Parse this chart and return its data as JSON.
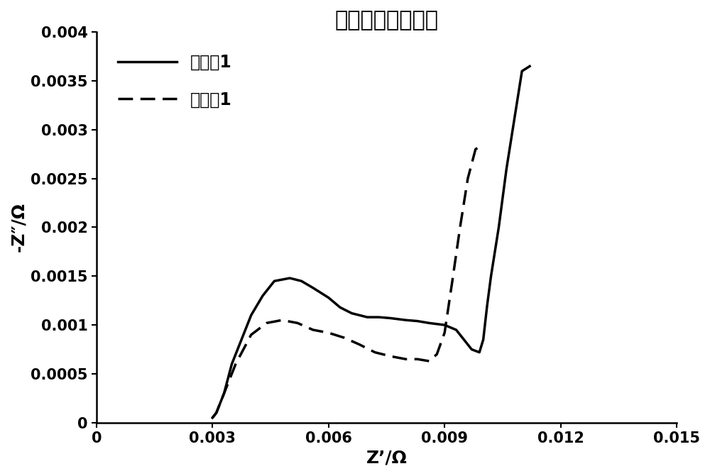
{
  "title": "负极电化学阻抗谱",
  "xlabel": "Z’/Ω",
  "ylabel": "-Z″/Ω",
  "xlim": [
    0,
    0.015
  ],
  "ylim": [
    0,
    0.004
  ],
  "xticks": [
    0,
    0.003,
    0.006,
    0.009,
    0.012,
    0.015
  ],
  "yticks": [
    0,
    0.0005,
    0.001,
    0.0015,
    0.002,
    0.0025,
    0.003,
    0.0035,
    0.004
  ],
  "legend1_label": "对比例1",
  "legend2_label": "实施例1",
  "solid_x": [
    0.003,
    0.0031,
    0.0033,
    0.0035,
    0.0038,
    0.004,
    0.0043,
    0.0046,
    0.005,
    0.0053,
    0.0056,
    0.006,
    0.0063,
    0.0066,
    0.007,
    0.0073,
    0.0076,
    0.008,
    0.0083,
    0.0086,
    0.009,
    0.0093,
    0.0095,
    0.0097,
    0.0099,
    0.01,
    0.0101,
    0.0102,
    0.0104,
    0.0106,
    0.0108,
    0.011,
    0.0112
  ],
  "solid_y": [
    5e-05,
    0.0001,
    0.0003,
    0.0006,
    0.0009,
    0.0011,
    0.0013,
    0.00145,
    0.00148,
    0.00145,
    0.00138,
    0.00128,
    0.00118,
    0.00112,
    0.00108,
    0.00108,
    0.00107,
    0.00105,
    0.00104,
    0.00102,
    0.001,
    0.00095,
    0.00085,
    0.00075,
    0.00072,
    0.00085,
    0.0012,
    0.0015,
    0.002,
    0.0026,
    0.0031,
    0.0036,
    0.00365
  ],
  "dashed_x": [
    0.003,
    0.0031,
    0.0033,
    0.0036,
    0.004,
    0.0044,
    0.0048,
    0.0052,
    0.0056,
    0.006,
    0.0064,
    0.0068,
    0.0072,
    0.0076,
    0.008,
    0.0083,
    0.0086,
    0.0088,
    0.009,
    0.0092,
    0.0094,
    0.0096,
    0.0098,
    0.01
  ],
  "dashed_y": [
    5e-05,
    0.0001,
    0.0003,
    0.0006,
    0.0009,
    0.00102,
    0.00105,
    0.00102,
    0.00095,
    0.00092,
    0.00087,
    0.0008,
    0.00072,
    0.00068,
    0.00065,
    0.00065,
    0.00063,
    0.0007,
    0.00092,
    0.00145,
    0.002,
    0.0025,
    0.0028,
    0.00285
  ],
  "line_color": "#000000",
  "line_width": 2.5,
  "title_fontsize": 22,
  "label_fontsize": 18,
  "tick_fontsize": 15,
  "legend_fontsize": 17
}
